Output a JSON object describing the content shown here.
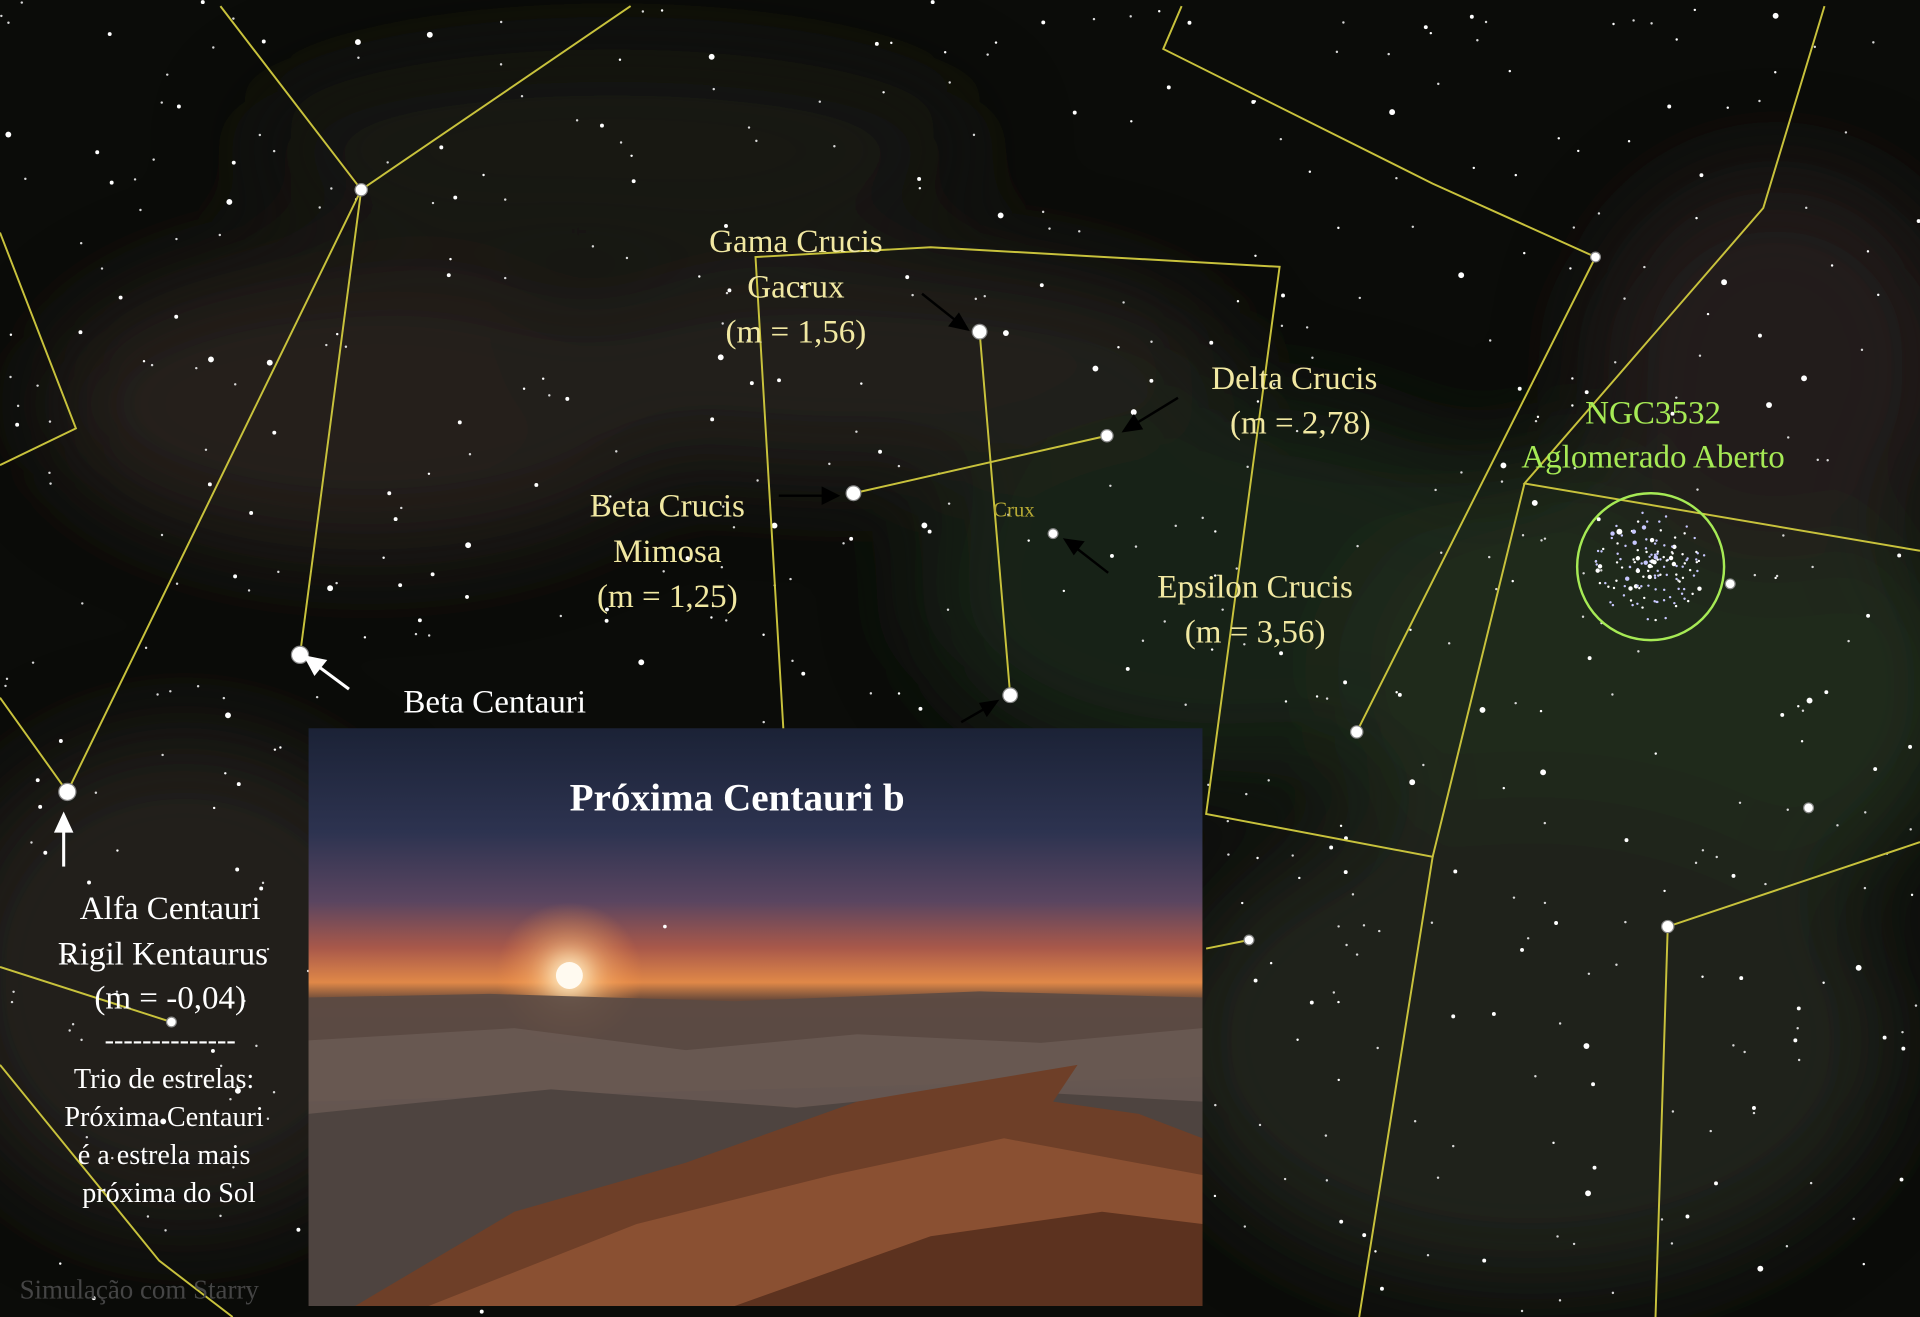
{
  "annotations": [
    {
      "lines": [
        "Gama Crucis",
        "Gacrux",
        "(m = 1,56)"
      ]
    },
    {
      "lines": [
        "Delta Crucis",
        "(m = 2,78)"
      ]
    },
    {
      "lines": [
        "Beta Crucis",
        "Mimosa",
        "(m = 1,25)"
      ]
    },
    {
      "lines": [
        "Epsilon Crucis",
        "(m = 3,56)"
      ]
    },
    {
      "lines": [
        "Beta Centauri"
      ]
    },
    {
      "lines": [
        "NGC3532",
        "Aglomerado Aberto"
      ]
    },
    {
      "lines": [
        "Alfa Centauri",
        "Rigil Kentaurus",
        "(m = -0,04)",
        "--------------",
        "Trio de estrelas:",
        "Próxima Centauri",
        "é a estrela mais",
        "próxima do Sol"
      ]
    }
  ],
  "constellation_label": "Crux",
  "inset": {
    "title": "Próxima Centauri b"
  },
  "credit": "Simulação com Starry"
}
